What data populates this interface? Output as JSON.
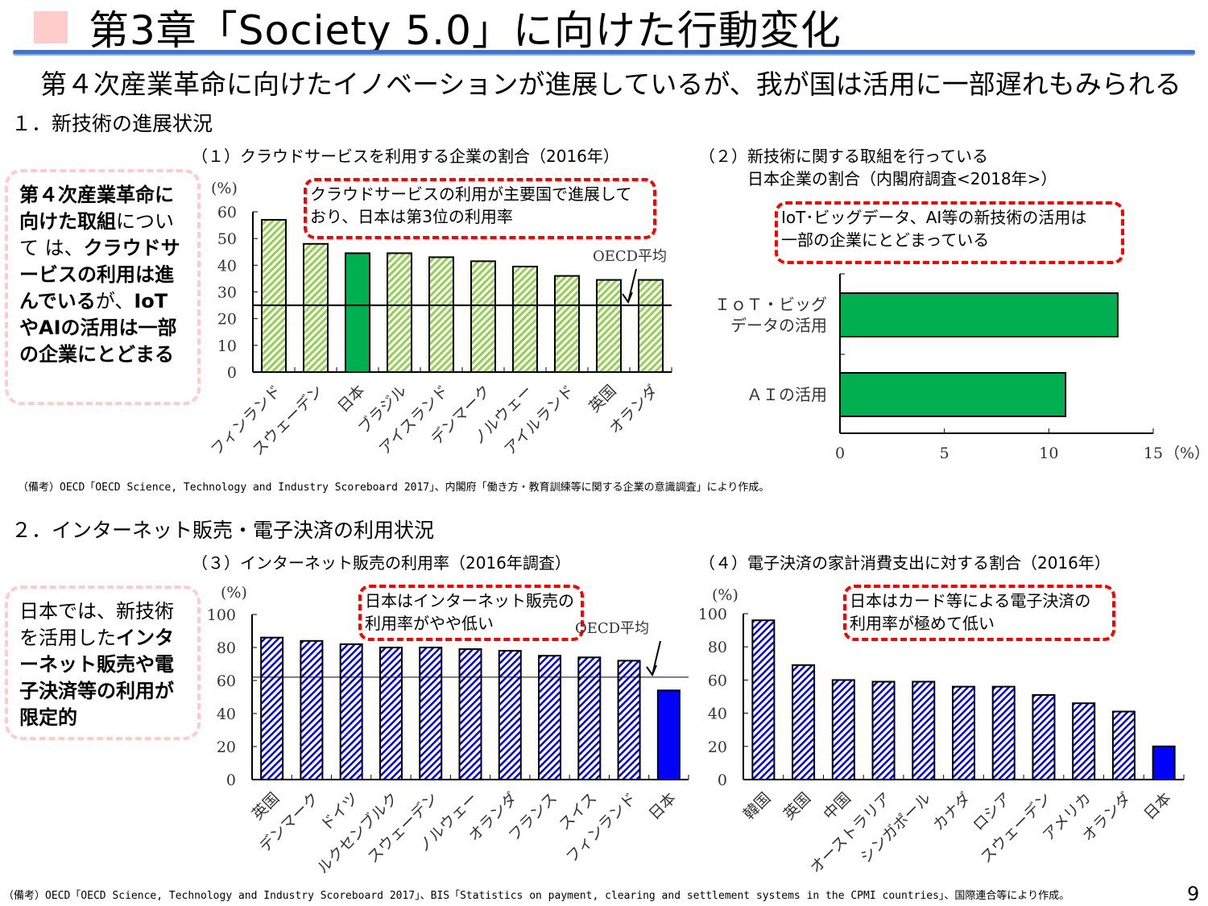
{
  "header": {
    "title": "第3章「Society 5.0」に向けた行動変化",
    "subtitle": "第４次産業革命に向けたイノベーションが進展しているが、我が国は活用に一部遅れもみられる",
    "accent_color": "#4472c4",
    "square_color": "#ffcccc"
  },
  "section1": {
    "heading": "１．新技術の進展状況",
    "sidebox": {
      "parts": [
        {
          "text": "第４次産業革命に向けた取組",
          "bold": true
        },
        {
          "text": "について は、",
          "bold": false
        },
        {
          "text": "クラウドサービスの利用は進んでいる",
          "bold": true
        },
        {
          "text": "が、",
          "bold": false
        },
        {
          "text": "IoTやAIの活用は一部の企業にとどまる",
          "bold": true
        }
      ]
    },
    "chart1_title": "（１）クラウドサービスを利用する企業の割合（2016年）",
    "chart1_callout": [
      "クラウドサービスの利用が主要国で進展して",
      "おり、日本は第3位の利用率"
    ],
    "chart2_title": [
      "（２）新技術に関する取組を行っている",
      "日本企業の割合（内閣府調査<2018年>）"
    ],
    "chart2_callout": [
      "IoT･ビッグデータ、AI等の新技術の活用は",
      "一部の企業にとどまっている"
    ],
    "note": "（備考）OECD「OECD Science, Technology and Industry Scoreboard 2017」、内閣府「働き方・教育訓練等に関する企業の意識調査」により作成。"
  },
  "section2": {
    "heading": "２．インターネット販売・電子決済の利用状況",
    "sidebox": {
      "parts": [
        {
          "text": "日本では、新技術を活用した",
          "bold": false
        },
        {
          "text": "インターネット販売や電子決済等の利用が限定的",
          "bold": true
        }
      ]
    },
    "chart3_title": "（３）インターネット販売の利用率（2016年調査）",
    "chart3_callout": [
      "日本はインターネット販売の",
      "利用率がやや低い"
    ],
    "chart4_title": "（４）電子決済の家計消費支出に対する割合（2016年）",
    "chart4_callout": [
      "日本はカード等による電子決済の",
      "利用率が極めて低い"
    ],
    "note": "（備考）OECD「OECD Science, Technology and Industry Scoreboard 2017」、BIS「Statistics on payment, clearing and settlement systems in the CPMI countries」、国際連合等により作成。"
  },
  "page_number": "9",
  "chart_data": [
    {
      "type": "bar",
      "unit_label": "(%)",
      "categories": [
        "フィンランド",
        "スウェーデン",
        "日本",
        "ブラジル",
        "アイスランド",
        "デンマーク",
        "ノルウェー",
        "アイルランド",
        "英国",
        "オランダ"
      ],
      "values": [
        57,
        48,
        44.5,
        44.5,
        43,
        41.5,
        39.5,
        36,
        34.5,
        34.5
      ],
      "highlight": "日本",
      "ylim": [
        0,
        60
      ],
      "yticks": [
        0,
        10,
        20,
        30,
        40,
        50,
        60
      ],
      "reference_line": {
        "label": "OECD平均",
        "value": 25
      },
      "colors": {
        "bar": "#92d050",
        "highlight": "#00b050"
      }
    },
    {
      "type": "bar",
      "orientation": "horizontal",
      "unit_label": "（%）",
      "categories": [
        "ＩｏＴ・ビッグデータの活用",
        "ＡＩの活用"
      ],
      "category_lines": [
        [
          "ＩｏＴ・ビッグ",
          "データの活用"
        ],
        [
          "ＡＩの活用"
        ]
      ],
      "values": [
        13.3,
        10.8
      ],
      "xlim": [
        0,
        15
      ],
      "xticks": [
        0,
        5,
        10,
        15
      ],
      "colors": {
        "bar": "#00b050"
      }
    },
    {
      "type": "bar",
      "unit_label": "(%)",
      "categories": [
        "英国",
        "デンマーク",
        "ドイツ",
        "ルクセンブルク",
        "スウェーデン",
        "ノルウェー",
        "オランダ",
        "フランス",
        "スイス",
        "フィンランド",
        "日本"
      ],
      "values": [
        86,
        84,
        82,
        80,
        80,
        79,
        78,
        75,
        74,
        72,
        54
      ],
      "highlight": "日本",
      "ylim": [
        0,
        100
      ],
      "yticks": [
        0,
        20,
        40,
        60,
        80,
        100
      ],
      "reference_line": {
        "label": "OECD平均",
        "value": 62
      },
      "colors": {
        "bar": "#0000ff",
        "highlight": "#0000ff"
      }
    },
    {
      "type": "bar",
      "unit_label": "(%)",
      "categories": [
        "韓国",
        "英国",
        "中国",
        "オーストラリア",
        "シンガポール",
        "カナダ",
        "ロシア",
        "スウェーデン",
        "アメリカ",
        "オランダ",
        "日本"
      ],
      "values": [
        96,
        69,
        60,
        59,
        59,
        56,
        56,
        51,
        46,
        41,
        20
      ],
      "highlight": "日本",
      "ylim": [
        0,
        100
      ],
      "yticks": [
        0,
        20,
        40,
        60,
        80,
        100
      ],
      "colors": {
        "bar": "#0000ff",
        "highlight": "#0000ff"
      }
    }
  ]
}
